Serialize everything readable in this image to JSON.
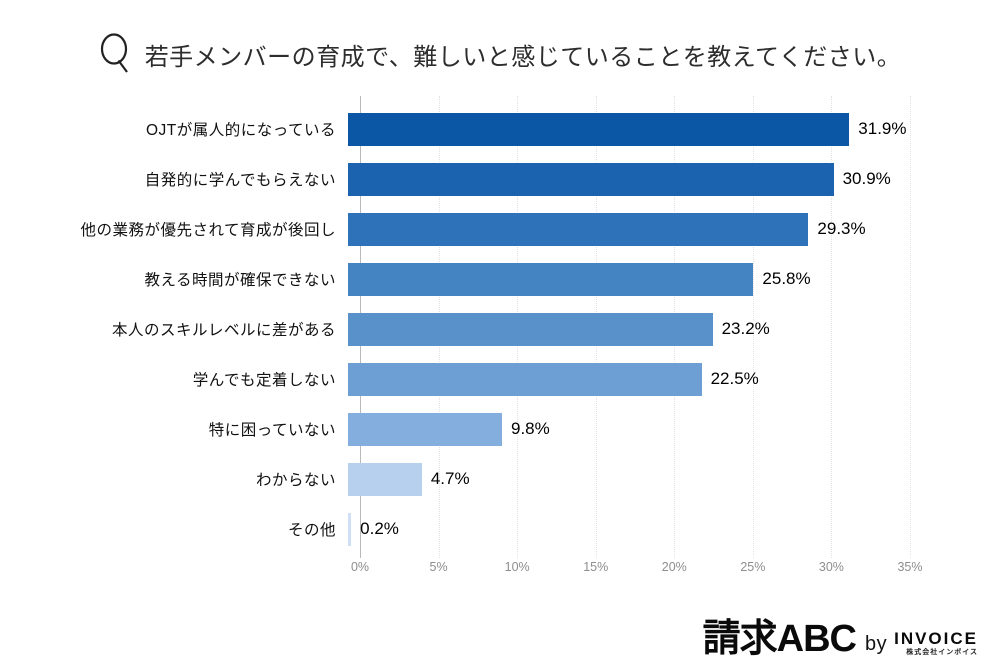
{
  "title": {
    "icon": "magnifier-q-icon",
    "text": "若手メンバーの育成で、難しいと感じていることを教えてください。"
  },
  "chart_data": {
    "type": "bar",
    "orientation": "horizontal",
    "title": "若手メンバーの育成で、難しいと感じていることを教えてください。",
    "categories": [
      "OJTが属人的になっている",
      "自発的に学んでもらえない",
      "他の業務が優先されて育成が後回し",
      "教える時間が確保できない",
      "本人のスキルレベルに差がある",
      "学んでも定着しない",
      "特に困っていない",
      "わからない",
      "その他"
    ],
    "values": [
      31.9,
      30.9,
      29.3,
      25.8,
      23.2,
      22.5,
      9.8,
      4.7,
      0.2
    ],
    "value_labels": [
      "31.9%",
      "30.9%",
      "29.3%",
      "25.8%",
      "23.2%",
      "22.5%",
      "9.8%",
      "4.7%",
      "0.2%"
    ],
    "bar_colors": [
      "#0b57a5",
      "#1b63ae",
      "#2e73b9",
      "#4584c3",
      "#5991cb",
      "#6d9ed4",
      "#84aedd",
      "#b6d0ed",
      "#cfe0f4"
    ],
    "xlim": [
      0,
      35
    ],
    "tick_step": 5,
    "tick_labels": [
      "0%",
      "5%",
      "10%",
      "15%",
      "20%",
      "25%",
      "30%",
      "35%"
    ],
    "grid": "vertical-dotted",
    "legend": "none",
    "background": "#ffffff"
  },
  "footer": {
    "brand": "請求ABC",
    "by": "by",
    "company": "INVOICE",
    "company_sub": "株式会社インボイス"
  }
}
